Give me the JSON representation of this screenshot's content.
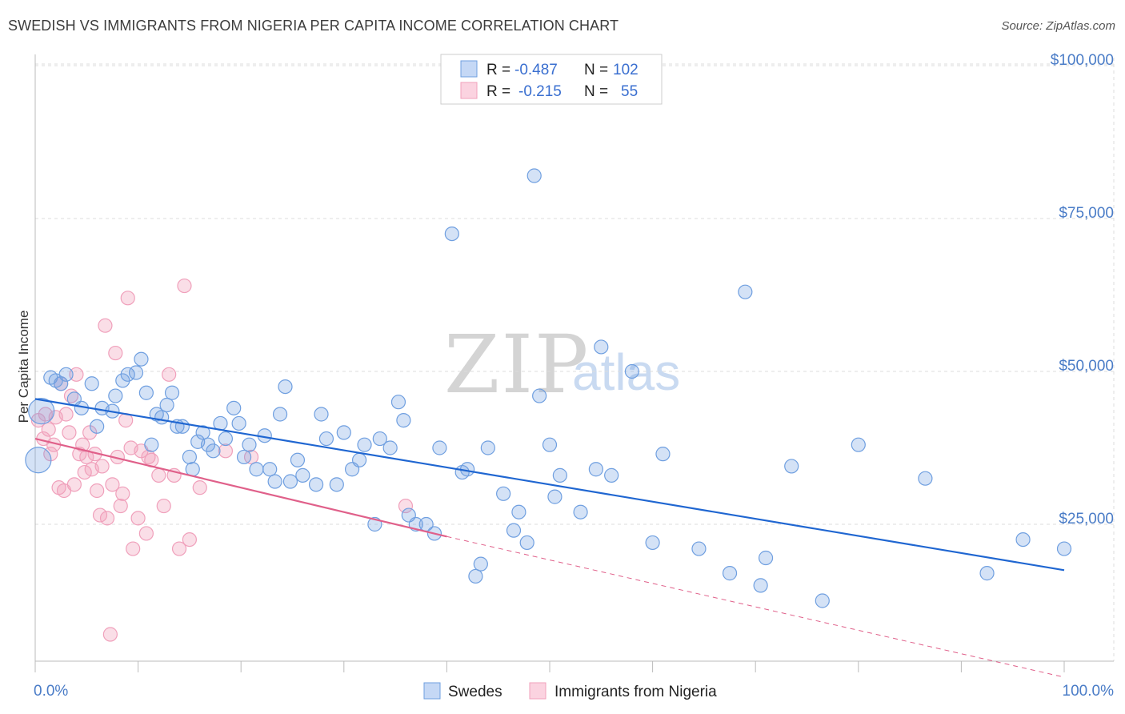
{
  "title": "SWEDISH VS IMMIGRANTS FROM NIGERIA PER CAPITA INCOME CORRELATION CHART",
  "source": "Source: ZipAtlas.com",
  "watermark": {
    "zip": "ZIP",
    "atlas": "atlas"
  },
  "colors": {
    "swedes": "#6f9fe0",
    "swedes_line": "#1f66d1",
    "nigeria": "#f0a0bb",
    "nigeria_line": "#e0608a",
    "grid": "#dddddd",
    "axis_text": "#4a7cc7"
  },
  "legend_top": {
    "rows": [
      {
        "r_label": "R = ",
        "r_value": "-0.487",
        "n_label": "N = ",
        "n_value": "102"
      },
      {
        "r_label": "R = ",
        "r_value": "-0.215",
        "n_label": "N = ",
        "n_value": "55"
      }
    ]
  },
  "legend_bottom": {
    "items": [
      "Swedes",
      "Immigrants from Nigeria"
    ]
  },
  "chart_data": {
    "type": "scatter",
    "title": "SWEDISH VS IMMIGRANTS FROM NIGERIA PER CAPITA INCOME CORRELATION CHART",
    "xlabel": "",
    "ylabel": "Per Capita Income",
    "xlim": [
      0,
      100
    ],
    "ylim": [
      0,
      105000
    ],
    "x_tick_labels": [
      "0.0%",
      "100.0%"
    ],
    "y_ticks": [
      25000,
      50000,
      75000,
      100000
    ],
    "y_tick_labels": [
      "$25,000",
      "$50,000",
      "$75,000",
      "$100,000"
    ],
    "legend": "top-center",
    "series": [
      {
        "name": "Swedes",
        "r": -0.487,
        "n": 102,
        "trend": {
          "x": [
            0,
            100
          ],
          "y": [
            45500,
            17500
          ]
        },
        "points": [
          [
            0.3,
            35500
          ],
          [
            0.6,
            43500
          ],
          [
            1.5,
            49000
          ],
          [
            2.0,
            48500
          ],
          [
            2.5,
            48000
          ],
          [
            3.0,
            49500
          ],
          [
            3.8,
            45500
          ],
          [
            4.5,
            44000
          ],
          [
            5.5,
            48000
          ],
          [
            6.0,
            41000
          ],
          [
            6.5,
            44000
          ],
          [
            7.5,
            43500
          ],
          [
            7.8,
            46000
          ],
          [
            8.5,
            48500
          ],
          [
            9.0,
            49500
          ],
          [
            9.8,
            49800
          ],
          [
            10.3,
            52000
          ],
          [
            10.8,
            46500
          ],
          [
            11.3,
            38000
          ],
          [
            11.8,
            43000
          ],
          [
            12.3,
            42500
          ],
          [
            12.8,
            44500
          ],
          [
            13.3,
            46500
          ],
          [
            13.8,
            41000
          ],
          [
            14.3,
            41000
          ],
          [
            15.0,
            36000
          ],
          [
            15.3,
            34000
          ],
          [
            15.8,
            38500
          ],
          [
            16.3,
            40000
          ],
          [
            16.8,
            38000
          ],
          [
            17.3,
            37000
          ],
          [
            18.0,
            41500
          ],
          [
            18.5,
            39000
          ],
          [
            19.3,
            44000
          ],
          [
            19.8,
            41500
          ],
          [
            20.3,
            36000
          ],
          [
            20.8,
            38000
          ],
          [
            21.5,
            34000
          ],
          [
            22.3,
            39500
          ],
          [
            22.8,
            34000
          ],
          [
            23.3,
            32000
          ],
          [
            23.8,
            43000
          ],
          [
            24.3,
            47500
          ],
          [
            24.8,
            32000
          ],
          [
            25.5,
            35500
          ],
          [
            26.0,
            33000
          ],
          [
            27.3,
            31500
          ],
          [
            27.8,
            43000
          ],
          [
            28.3,
            39000
          ],
          [
            29.3,
            31500
          ],
          [
            30.0,
            40000
          ],
          [
            30.8,
            34000
          ],
          [
            31.5,
            35500
          ],
          [
            32.0,
            38000
          ],
          [
            33.0,
            25000
          ],
          [
            33.5,
            39000
          ],
          [
            34.5,
            37500
          ],
          [
            35.3,
            45000
          ],
          [
            35.8,
            42000
          ],
          [
            36.3,
            26500
          ],
          [
            37.0,
            25000
          ],
          [
            38.0,
            25000
          ],
          [
            38.8,
            23500
          ],
          [
            39.3,
            37500
          ],
          [
            40.5,
            72500
          ],
          [
            41.5,
            33500
          ],
          [
            42.0,
            34000
          ],
          [
            42.8,
            16500
          ],
          [
            43.3,
            18500
          ],
          [
            44.0,
            37500
          ],
          [
            45.5,
            30000
          ],
          [
            46.5,
            24000
          ],
          [
            47.0,
            27000
          ],
          [
            47.8,
            22000
          ],
          [
            48.5,
            82000
          ],
          [
            49.0,
            46000
          ],
          [
            50.0,
            38000
          ],
          [
            50.5,
            29500
          ],
          [
            51.0,
            33000
          ],
          [
            53.0,
            27000
          ],
          [
            54.5,
            34000
          ],
          [
            55.0,
            54000
          ],
          [
            56.0,
            33000
          ],
          [
            58.0,
            50000
          ],
          [
            60.0,
            22000
          ],
          [
            61.0,
            36500
          ],
          [
            64.5,
            21000
          ],
          [
            67.5,
            17000
          ],
          [
            69.0,
            63000
          ],
          [
            70.5,
            15000
          ],
          [
            71.0,
            19500
          ],
          [
            73.5,
            34500
          ],
          [
            76.5,
            12500
          ],
          [
            80.0,
            38000
          ],
          [
            86.5,
            32500
          ],
          [
            92.5,
            17000
          ],
          [
            96.0,
            22500
          ],
          [
            100.0,
            21000
          ]
        ],
        "large_points": [
          [
            0.3,
            35500
          ],
          [
            0.6,
            43500
          ]
        ]
      },
      {
        "name": "Immigrants from Nigeria",
        "r": -0.215,
        "n": 55,
        "trend": {
          "x": [
            0,
            40
          ],
          "y": [
            39000,
            23000
          ],
          "x_dashed": [
            40,
            100
          ],
          "y_dashed": [
            23000,
            0
          ]
        },
        "points": [
          [
            0.3,
            42000
          ],
          [
            0.8,
            39000
          ],
          [
            1.0,
            43000
          ],
          [
            1.3,
            40500
          ],
          [
            1.5,
            36500
          ],
          [
            1.8,
            38000
          ],
          [
            2.0,
            42500
          ],
          [
            2.3,
            31000
          ],
          [
            2.5,
            48000
          ],
          [
            2.8,
            30500
          ],
          [
            3.0,
            43000
          ],
          [
            3.3,
            40000
          ],
          [
            3.5,
            46000
          ],
          [
            3.8,
            31500
          ],
          [
            4.0,
            49500
          ],
          [
            4.3,
            36500
          ],
          [
            4.6,
            38000
          ],
          [
            4.8,
            33500
          ],
          [
            5.0,
            36000
          ],
          [
            5.3,
            40000
          ],
          [
            5.5,
            34000
          ],
          [
            5.8,
            36500
          ],
          [
            6.0,
            30500
          ],
          [
            6.3,
            26500
          ],
          [
            6.5,
            34500
          ],
          [
            6.8,
            57500
          ],
          [
            7.0,
            26000
          ],
          [
            7.3,
            7000
          ],
          [
            7.5,
            31500
          ],
          [
            7.8,
            53000
          ],
          [
            8.0,
            36000
          ],
          [
            8.3,
            28000
          ],
          [
            8.5,
            30000
          ],
          [
            8.8,
            42000
          ],
          [
            9.0,
            62000
          ],
          [
            9.3,
            37500
          ],
          [
            9.5,
            21000
          ],
          [
            10.0,
            26000
          ],
          [
            10.3,
            37000
          ],
          [
            10.8,
            23500
          ],
          [
            11.0,
            36000
          ],
          [
            11.3,
            35500
          ],
          [
            12.0,
            33000
          ],
          [
            12.5,
            28000
          ],
          [
            13.0,
            49500
          ],
          [
            13.5,
            33000
          ],
          [
            14.0,
            21000
          ],
          [
            14.5,
            64000
          ],
          [
            15.0,
            22500
          ],
          [
            16.0,
            31000
          ],
          [
            18.5,
            37000
          ],
          [
            21.0,
            36000
          ],
          [
            36.0,
            28000
          ]
        ]
      }
    ]
  }
}
